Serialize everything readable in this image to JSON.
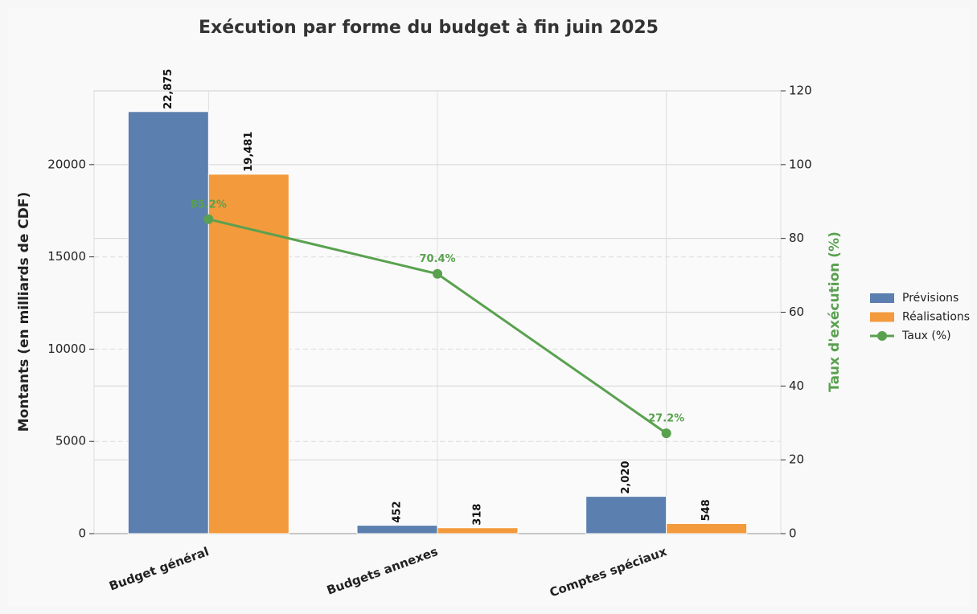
{
  "chart_data": {
    "type": "bar",
    "title": "Exécution par forme du budget à fin juin 2025",
    "y_label": "Montants (en milliards de CDF)",
    "y2_label": "Taux d'exécution (%)",
    "categories": [
      "Budget général",
      "Budgets annexes",
      "Comptes spéciaux"
    ],
    "series": [
      {
        "name": "Prévisions",
        "color": "#5b7fae",
        "values": [
          22875,
          452,
          2020
        ],
        "value_labels": [
          "22,875",
          "452",
          "2,020"
        ]
      },
      {
        "name": "Réalisations",
        "color": "#f39a3d",
        "values": [
          19481,
          318,
          548
        ],
        "value_labels": [
          "19,481",
          "318",
          "548"
        ]
      },
      {
        "name": "Taux (%)",
        "type": "line",
        "axis": "y2",
        "color": "#59a14f",
        "values": [
          85.2,
          70.4,
          27.2
        ],
        "value_labels": [
          "85.2%",
          "70.4%",
          "27.2%"
        ]
      }
    ],
    "ylim": [
      0,
      24000
    ],
    "yticks": [
      0,
      5000,
      10000,
      15000,
      20000
    ],
    "y2lim": [
      0,
      120
    ],
    "y2ticks": [
      0,
      20,
      40,
      60,
      80,
      100,
      120
    ],
    "grid": true,
    "legend": "right"
  }
}
